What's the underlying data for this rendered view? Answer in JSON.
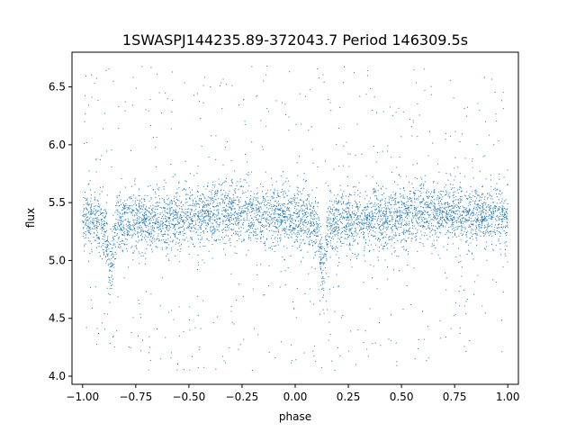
{
  "chart_data": {
    "type": "scatter",
    "title": "1SWASPJ144235.89-372043.7 Period 146309.5s",
    "xlabel": "phase",
    "ylabel": "flux",
    "xlim": [
      -1.05,
      1.05
    ],
    "ylim": [
      3.93,
      6.8
    ],
    "xticks": [
      -1.0,
      -0.75,
      -0.5,
      -0.25,
      0.0,
      0.25,
      0.5,
      0.75,
      1.0
    ],
    "xtick_labels": [
      "−1.00",
      "−0.75",
      "−0.50",
      "−0.25",
      "0.00",
      "0.25",
      "0.50",
      "0.75",
      "1.00"
    ],
    "yticks": [
      4.0,
      4.5,
      5.0,
      5.5,
      6.0,
      6.5
    ],
    "ytick_labels": [
      "4.0",
      "4.5",
      "5.0",
      "5.5",
      "6.0",
      "6.5"
    ],
    "grid": false,
    "marker_color": "#1f77b4",
    "baseline_flux": 5.37,
    "eclipse_phases": [
      -0.87,
      0.13
    ],
    "eclipse_min_flux": 4.95,
    "phase_range": [
      -1.0,
      1.0
    ],
    "flux_range_shown": [
      4.05,
      6.68
    ]
  }
}
